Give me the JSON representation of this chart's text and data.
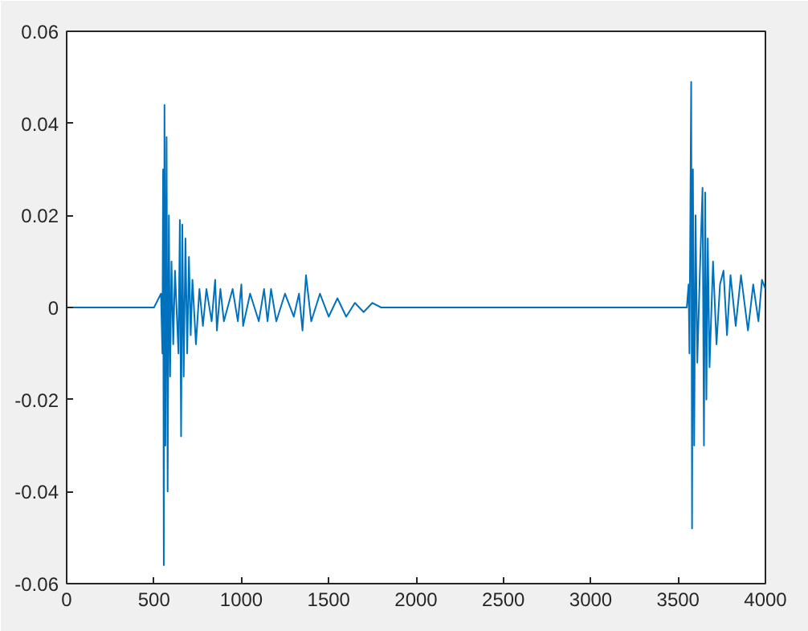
{
  "chart_data": {
    "type": "line",
    "xlim": [
      0,
      4000
    ],
    "ylim": [
      -0.06,
      0.06
    ],
    "xticks": [
      0,
      500,
      1000,
      1500,
      2000,
      2500,
      3000,
      3500,
      4000
    ],
    "yticks": [
      -0.06,
      -0.04,
      -0.02,
      0,
      0.02,
      0.04,
      0.06
    ],
    "grid": false,
    "marker": "none",
    "line_style": "solid",
    "x": [
      0,
      250,
      500,
      540,
      548,
      552,
      556,
      560,
      565,
      572,
      578,
      585,
      592,
      600,
      610,
      620,
      640,
      648,
      655,
      662,
      670,
      680,
      690,
      700,
      710,
      720,
      740,
      760,
      780,
      800,
      830,
      850,
      860,
      880,
      900,
      950,
      980,
      1000,
      1010,
      1050,
      1100,
      1130,
      1150,
      1170,
      1200,
      1250,
      1300,
      1330,
      1350,
      1370,
      1400,
      1450,
      1500,
      1550,
      1600,
      1650,
      1700,
      1750,
      1800,
      2000,
      2500,
      3000,
      3500,
      3550,
      3560,
      3565,
      3575,
      3580,
      3585,
      3592,
      3600,
      3610,
      3625,
      3640,
      3648,
      3655,
      3662,
      3670,
      3680,
      3700,
      3720,
      3740,
      3760,
      3780,
      3800,
      3830,
      3860,
      3900,
      3930,
      3960,
      3980,
      4000
    ],
    "series": [
      {
        "color": "#0072bd",
        "values": [
          0,
          0,
          0,
          0.003,
          -0.01,
          0.03,
          -0.056,
          0.044,
          -0.03,
          0.037,
          -0.04,
          0.02,
          -0.015,
          0.01,
          -0.008,
          0.008,
          -0.01,
          0.019,
          -0.028,
          0.018,
          -0.015,
          0.015,
          -0.01,
          0.011,
          -0.006,
          0.006,
          -0.008,
          0.004,
          -0.004,
          0.004,
          -0.003,
          0.006,
          -0.005,
          0.004,
          -0.003,
          0.004,
          -0.003,
          0.005,
          -0.004,
          0.003,
          -0.003,
          0.004,
          -0.003,
          0.004,
          -0.003,
          0.003,
          -0.002,
          0.003,
          -0.005,
          0.007,
          -0.003,
          0.003,
          -0.002,
          0.002,
          -0.002,
          0.001,
          -0.001,
          0.001,
          0,
          0,
          0,
          0,
          0,
          0,
          0.005,
          -0.01,
          0.049,
          -0.048,
          0.03,
          -0.03,
          0.02,
          -0.012,
          0.008,
          0.026,
          -0.03,
          0.025,
          -0.02,
          0.015,
          -0.013,
          0.01,
          -0.008,
          0.005,
          0.008,
          -0.006,
          0.007,
          -0.004,
          0.007,
          -0.005,
          0.005,
          -0.003,
          0.006,
          0.004
        ]
      }
    ]
  }
}
